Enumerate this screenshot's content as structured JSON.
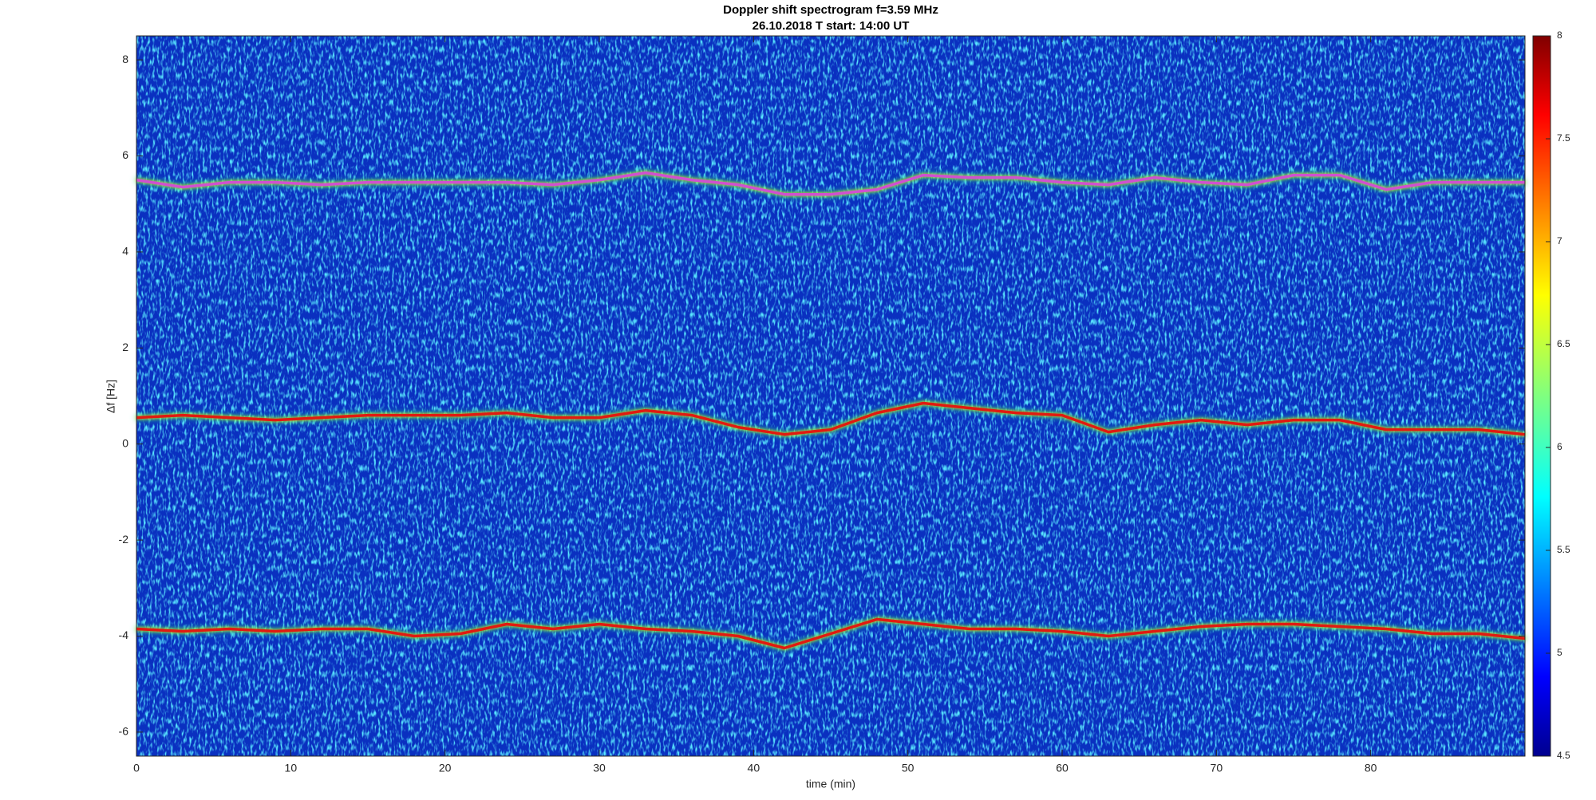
{
  "chart_data": {
    "type": "spectrogram",
    "title": "Doppler shift spectrogram f=3.59 MHz",
    "subtitle": "26.10.2018   T start: 14:00 UT",
    "x_label": "time (min)",
    "y_label": "Δf [Hz]",
    "xlim": [
      0,
      90
    ],
    "xticks": [
      0,
      10,
      20,
      30,
      40,
      50,
      60,
      70,
      80
    ],
    "ylim": [
      -6.5,
      8.5
    ],
    "yticks": [
      -6,
      -4,
      -2,
      0,
      2,
      4,
      6,
      8
    ],
    "colormap": "jet",
    "clim": [
      4.5,
      8
    ],
    "cticks": [
      4.5,
      5,
      5.5,
      6,
      6.5,
      7,
      7.5,
      8
    ],
    "x": [
      0,
      3,
      6,
      9,
      12,
      15,
      18,
      21,
      24,
      27,
      30,
      33,
      36,
      39,
      42,
      45,
      48,
      51,
      54,
      57,
      60,
      63,
      66,
      69,
      72,
      75,
      78,
      81,
      84,
      87,
      90
    ],
    "series": [
      {
        "color": "#d050d0",
        "values": [
          5.5,
          5.35,
          5.45,
          5.45,
          5.4,
          5.45,
          5.45,
          5.45,
          5.45,
          5.4,
          5.5,
          5.65,
          5.5,
          5.4,
          5.2,
          5.2,
          5.3,
          5.6,
          5.55,
          5.55,
          5.45,
          5.4,
          5.55,
          5.45,
          5.4,
          5.6,
          5.6,
          5.3,
          5.45,
          5.45,
          5.45
        ]
      },
      {
        "color": "#e01a10",
        "values": [
          0.55,
          0.6,
          0.55,
          0.5,
          0.55,
          0.6,
          0.6,
          0.6,
          0.65,
          0.55,
          0.55,
          0.7,
          0.6,
          0.35,
          0.2,
          0.3,
          0.65,
          0.85,
          0.75,
          0.65,
          0.6,
          0.25,
          0.4,
          0.5,
          0.4,
          0.5,
          0.5,
          0.3,
          0.3,
          0.3,
          0.2
        ]
      },
      {
        "color": "#e01a10",
        "values": [
          -3.85,
          -3.9,
          -3.85,
          -3.9,
          -3.85,
          -3.85,
          -4.0,
          -3.95,
          -3.75,
          -3.85,
          -3.75,
          -3.85,
          -3.9,
          -4.0,
          -4.25,
          -3.95,
          -3.65,
          -3.75,
          -3.85,
          -3.85,
          -3.9,
          -4.0,
          -3.9,
          -3.8,
          -3.75,
          -3.75,
          -3.8,
          -3.85,
          -3.95,
          -3.95,
          -4.05
        ]
      }
    ]
  }
}
